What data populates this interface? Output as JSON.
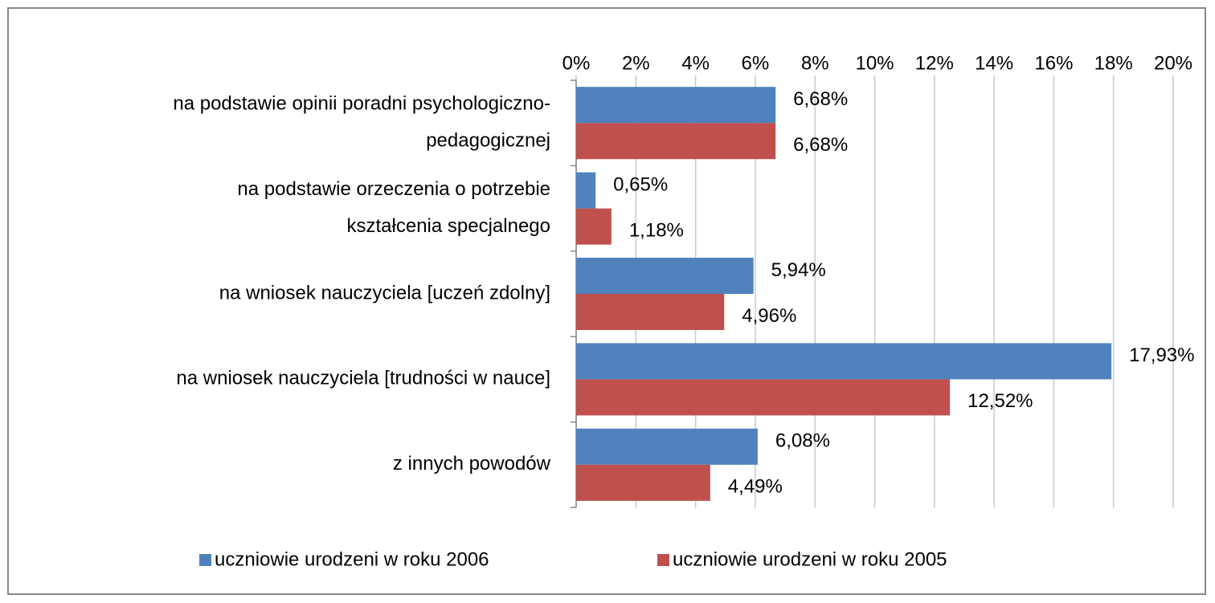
{
  "chart_data": {
    "type": "hbar",
    "categories": [
      [
        "na podstawie opinii poradni psychologiczno-",
        "pedagogicznej"
      ],
      [
        "na podstawie orzeczenia o potrzebie",
        "kształcenia specjalnego"
      ],
      [
        "na wniosek nauczyciela [uczeń zdolny]"
      ],
      [
        "na wniosek nauczyciela [trudności w nauce]"
      ],
      [
        "z innych powodów"
      ]
    ],
    "series": [
      {
        "name": "uczniowie urodzeni w roku 2006",
        "color": "#4f81bd",
        "values": [
          6.68,
          0.65,
          5.94,
          17.93,
          6.08
        ],
        "value_labels": [
          "6,68%",
          "0,65%",
          "5,94%",
          "17,93%",
          "6,08%"
        ]
      },
      {
        "name": "uczniowie urodzeni w roku 2005",
        "color": "#c0504d",
        "values": [
          6.68,
          1.18,
          4.96,
          12.52,
          4.49
        ],
        "value_labels": [
          "6,68%",
          "1,18%",
          "4,96%",
          "12,52%",
          "4,49%"
        ]
      }
    ],
    "xlim": [
      0,
      20
    ],
    "xticks": [
      {
        "value": 0,
        "label": "0%"
      },
      {
        "value": 2,
        "label": "2%"
      },
      {
        "value": 4,
        "label": "4%"
      },
      {
        "value": 6,
        "label": "6%"
      },
      {
        "value": 8,
        "label": "8%"
      },
      {
        "value": 10,
        "label": "10%"
      },
      {
        "value": 12,
        "label": "12%"
      },
      {
        "value": 14,
        "label": "14%"
      },
      {
        "value": 16,
        "label": "16%"
      },
      {
        "value": 18,
        "label": "18%"
      },
      {
        "value": 20,
        "label": "20%"
      }
    ],
    "grid": true,
    "legend": "bottom"
  }
}
